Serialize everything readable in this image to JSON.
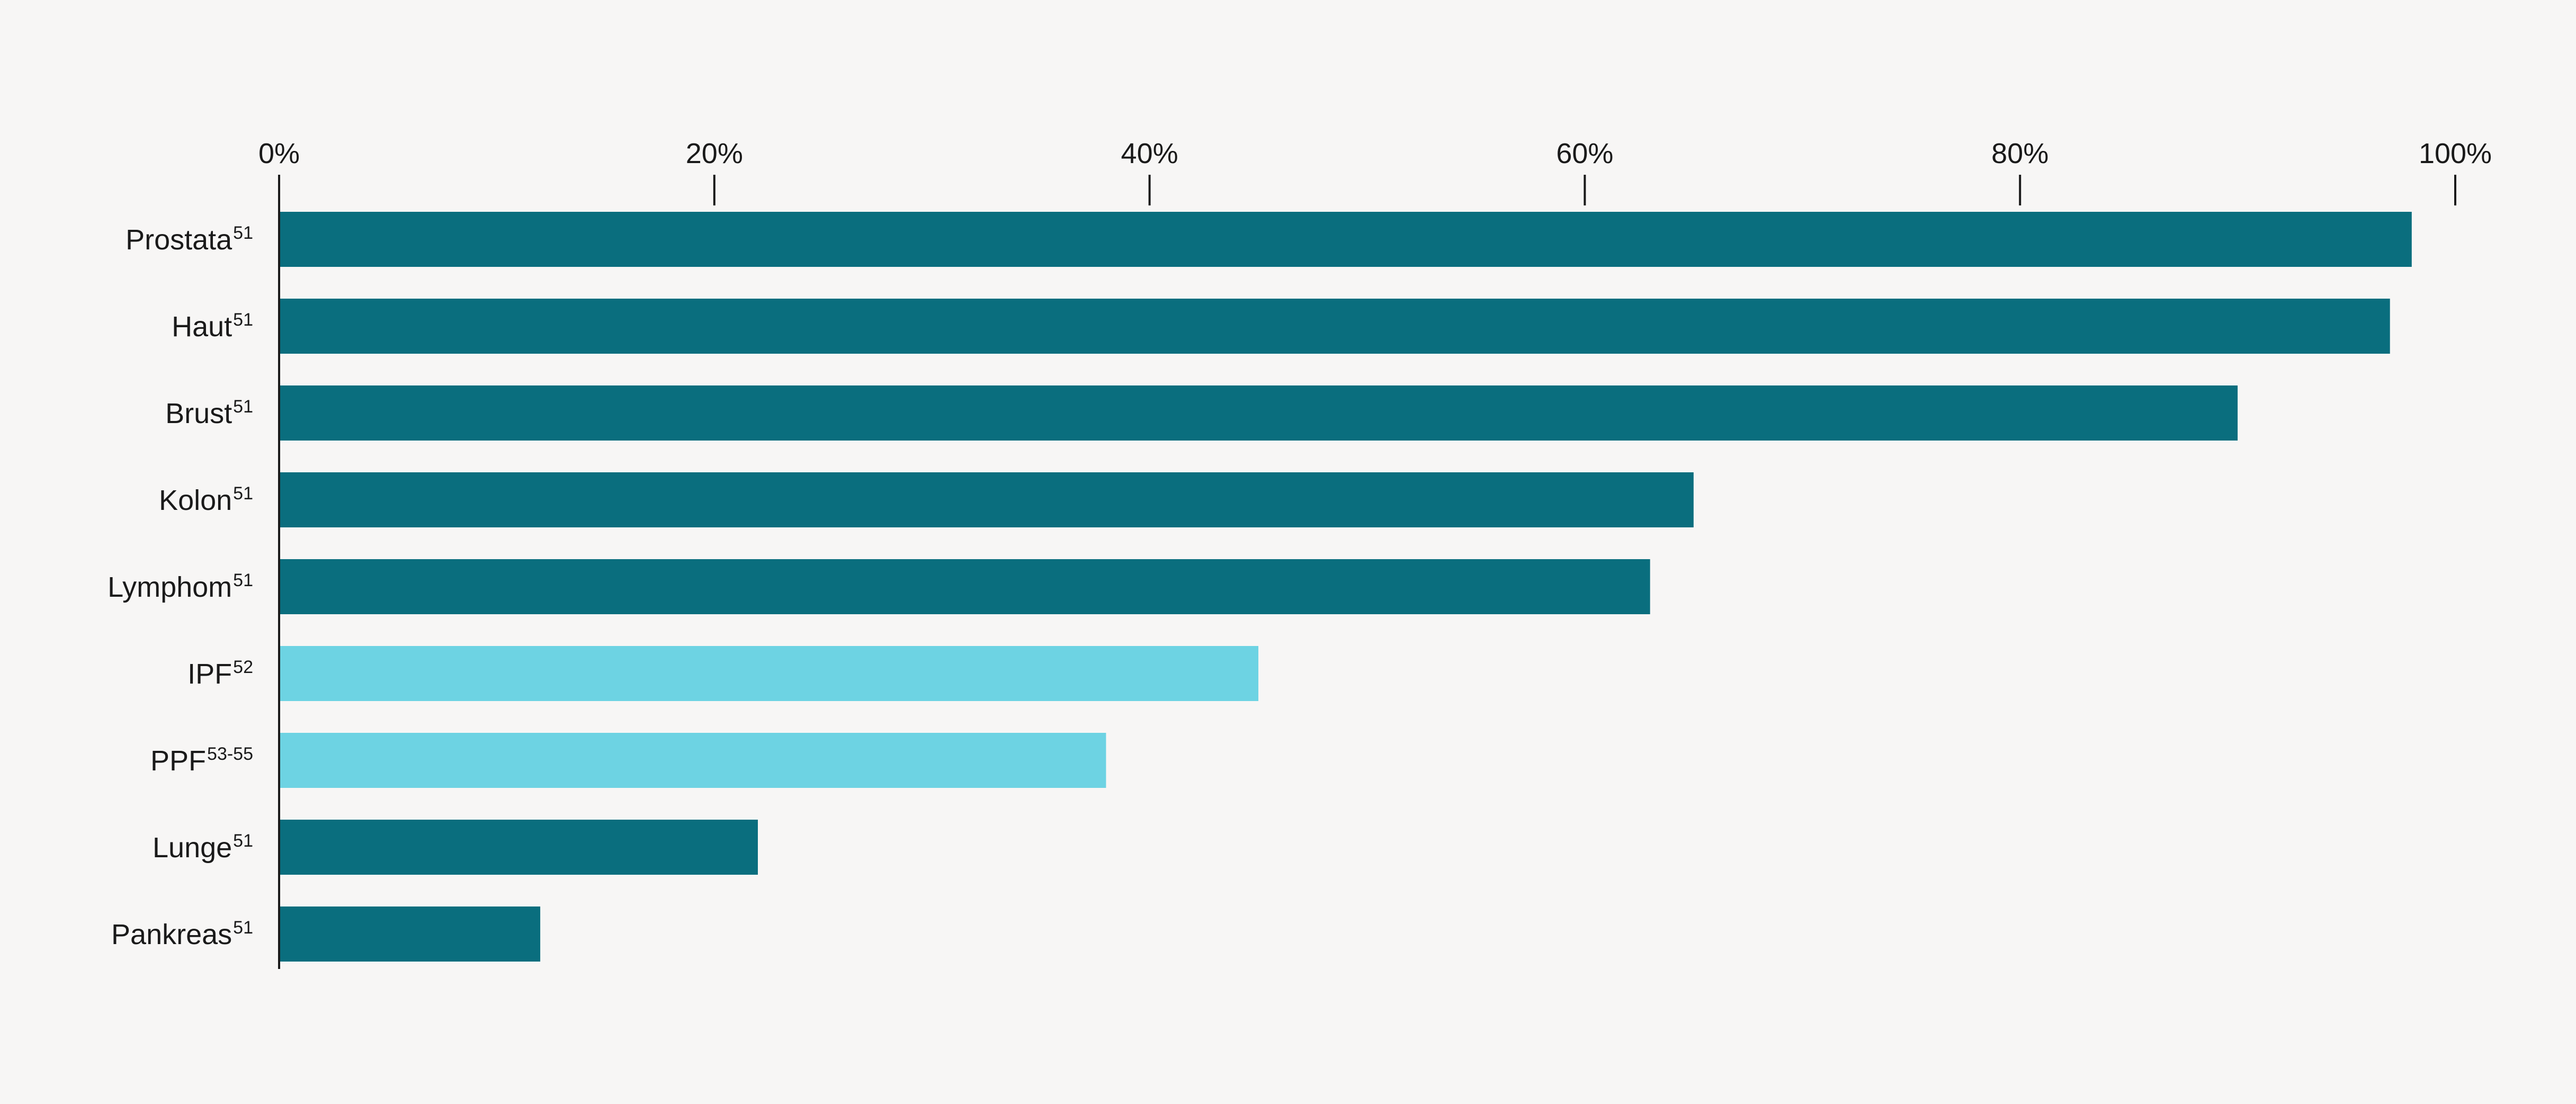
{
  "chart_data": {
    "type": "bar",
    "orientation": "horizontal",
    "title": "",
    "xlabel": "",
    "ylabel": "",
    "xlim": [
      0,
      100
    ],
    "x_ticks": [
      0,
      20,
      40,
      60,
      80,
      100
    ],
    "x_tick_labels": [
      "0%",
      "20%",
      "40%",
      "60%",
      "80%",
      "100%"
    ],
    "x_axis_position": "top",
    "grid": false,
    "categories": [
      {
        "label": "Prostata",
        "ref": "51"
      },
      {
        "label": "Haut",
        "ref": "51"
      },
      {
        "label": "Brust",
        "ref": "51"
      },
      {
        "label": "Kolon",
        "ref": "51"
      },
      {
        "label": "Lymphom",
        "ref": "51"
      },
      {
        "label": "IPF",
        "ref": "52"
      },
      {
        "label": "PPF",
        "ref": "53-55"
      },
      {
        "label": "Lunge",
        "ref": "51"
      },
      {
        "label": "Pankreas",
        "ref": "51"
      }
    ],
    "values": [
      98,
      97,
      90,
      65,
      63,
      45,
      38,
      22,
      12
    ],
    "bar_colors": [
      "#0a6e7e",
      "#0a6e7e",
      "#0a6e7e",
      "#0a6e7e",
      "#0a6e7e",
      "#6dd3e3",
      "#6dd3e3",
      "#0a6e7e",
      "#0a6e7e"
    ]
  }
}
